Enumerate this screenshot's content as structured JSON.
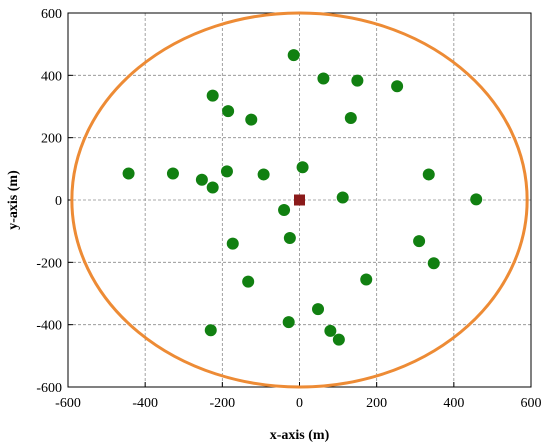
{
  "chart_data": {
    "type": "scatter",
    "title": "",
    "xlabel": "x-axis (m)",
    "ylabel": "y-axis (m)",
    "xlim": [
      -600,
      600
    ],
    "ylim": [
      -600,
      600
    ],
    "xticks": [
      -600,
      -400,
      -200,
      0,
      200,
      400,
      600
    ],
    "yticks": [
      -600,
      -400,
      -200,
      0,
      200,
      400,
      600
    ],
    "grid": true,
    "grid_style": "dashed",
    "series": [
      {
        "marker": "circle",
        "color": "#118011",
        "points": [
          {
            "x": -15,
            "y": 465
          },
          {
            "x": 62,
            "y": 390
          },
          {
            "x": 150,
            "y": 383
          },
          {
            "x": 253,
            "y": 365
          },
          {
            "x": -225,
            "y": 335
          },
          {
            "x": -185,
            "y": 285
          },
          {
            "x": -125,
            "y": 258
          },
          {
            "x": 133,
            "y": 263
          },
          {
            "x": 8,
            "y": 105
          },
          {
            "x": -443,
            "y": 85
          },
          {
            "x": -328,
            "y": 85
          },
          {
            "x": -188,
            "y": 92
          },
          {
            "x": -93,
            "y": 82
          },
          {
            "x": -253,
            "y": 65
          },
          {
            "x": -225,
            "y": 40
          },
          {
            "x": 335,
            "y": 82
          },
          {
            "x": 458,
            "y": 2
          },
          {
            "x": 112,
            "y": 8
          },
          {
            "x": -40,
            "y": -32
          },
          {
            "x": -25,
            "y": -122
          },
          {
            "x": -173,
            "y": -140
          },
          {
            "x": 310,
            "y": -132
          },
          {
            "x": 348,
            "y": -203
          },
          {
            "x": 173,
            "y": -255
          },
          {
            "x": -133,
            "y": -262
          },
          {
            "x": 48,
            "y": -350
          },
          {
            "x": -28,
            "y": -392
          },
          {
            "x": 80,
            "y": -420
          },
          {
            "x": 102,
            "y": -448
          },
          {
            "x": -230,
            "y": -418
          }
        ]
      },
      {
        "marker": "square",
        "color": "#8b1a1a",
        "points": [
          {
            "x": 0,
            "y": 0
          }
        ]
      }
    ],
    "shapes": [
      {
        "type": "ellipse",
        "cx": 0,
        "cy": 0,
        "rx": 590,
        "ry": 600,
        "stroke": "#ed8b35"
      }
    ]
  }
}
